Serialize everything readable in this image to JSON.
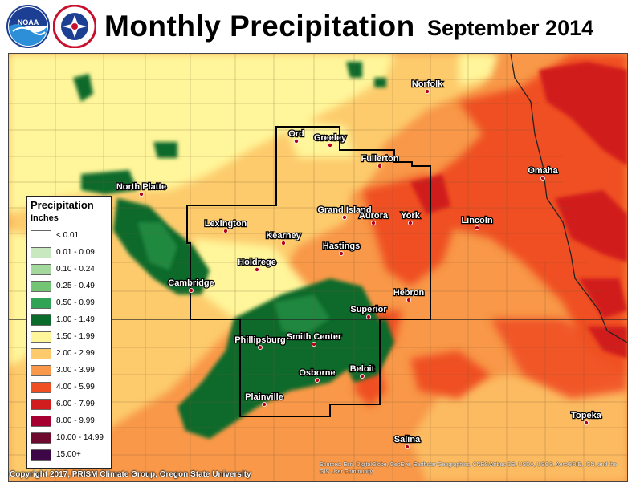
{
  "header": {
    "title": "Monthly Precipitation",
    "subtitle": "September 2014",
    "logos": [
      {
        "name": "noaa-logo",
        "text": "NOAA"
      },
      {
        "name": "nws-logo",
        "text": "NATIONAL WEATHER SERVICE"
      }
    ]
  },
  "legend": {
    "title": "Precipitation",
    "units": "Inches",
    "items": [
      {
        "label": "< 0.01",
        "color": "#ffffff"
      },
      {
        "label": "0.01 - 0.09",
        "color": "#c8e9c0"
      },
      {
        "label": "0.10 - 0.24",
        "color": "#a3d99c"
      },
      {
        "label": "0.25 - 0.49",
        "color": "#74c476"
      },
      {
        "label": "0.50 - 0.99",
        "color": "#31a354"
      },
      {
        "label": "1.00 - 1.49",
        "color": "#0b6b2a"
      },
      {
        "label": "1.50 - 1.99",
        "color": "#fff59a"
      },
      {
        "label": "2.00 - 2.99",
        "color": "#fdcb6c"
      },
      {
        "label": "3.00 - 3.99",
        "color": "#f89848"
      },
      {
        "label": "4.00 - 5.99",
        "color": "#ef4f22"
      },
      {
        "label": "6.00 - 7.99",
        "color": "#d11d1d"
      },
      {
        "label": "8.00 - 9.99",
        "color": "#a5002f"
      },
      {
        "label": "10.00 - 14.99",
        "color": "#6e0a2e"
      },
      {
        "label": "15.00+",
        "color": "#3d0646"
      }
    ]
  },
  "cities": [
    {
      "name": "Norfolk"
    },
    {
      "name": "Ord"
    },
    {
      "name": "Greeley"
    },
    {
      "name": "Fullerton"
    },
    {
      "name": "North Platte"
    },
    {
      "name": "Omaha"
    },
    {
      "name": "Grand Island"
    },
    {
      "name": "Aurora"
    },
    {
      "name": "York"
    },
    {
      "name": "Lincoln"
    },
    {
      "name": "Lexington"
    },
    {
      "name": "Kearney"
    },
    {
      "name": "Hastings"
    },
    {
      "name": "Holdrege"
    },
    {
      "name": "Cambridge"
    },
    {
      "name": "Hebron"
    },
    {
      "name": "Superior"
    },
    {
      "name": "Phillipsburg"
    },
    {
      "name": "Smith Center"
    },
    {
      "name": "Osborne"
    },
    {
      "name": "Beloit"
    },
    {
      "name": "Plainville"
    },
    {
      "name": "Topeka"
    },
    {
      "name": "Salina"
    }
  ],
  "footer": {
    "copyright": "Copyright 2017, PRISM Climate Group, Oregon State University",
    "credits": "Sources: Esri, DigitalGlobe, GeoEye, Earthstar Geographics, CNES/Airbus DS, USDA, USGS, AeroGRID, IGN, and the GIS User Community"
  }
}
